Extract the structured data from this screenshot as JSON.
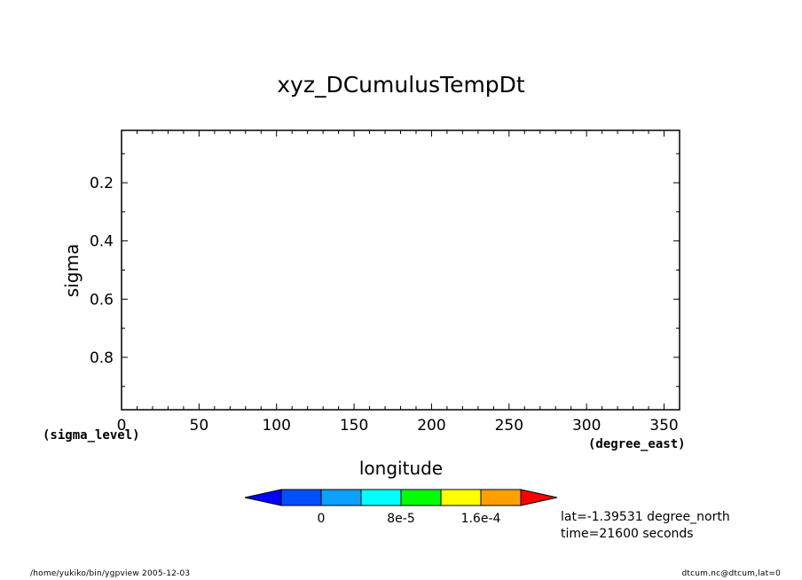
{
  "chart_data": {
    "type": "heatmap",
    "title": "xyz_DCumulusTempDt",
    "xlabel": "longitude",
    "ylabel": "sigma",
    "x_units": "(degree_east)",
    "y_units": "(sigma_level)",
    "xlim": [
      0,
      360
    ],
    "ylim": [
      0.02,
      0.98
    ],
    "y_inverted": true,
    "x_ticks": [
      0,
      50,
      100,
      150,
      200,
      250,
      300,
      350
    ],
    "y_ticks": [
      0.2,
      0.4,
      0.6,
      0.8
    ],
    "values": [],
    "colorbar": {
      "colors": [
        "#0000ff",
        "#0050ff",
        "#0ca0ff",
        "#00ffff",
        "#00ff00",
        "#ffff00",
        "#ffa000",
        "#ff0000"
      ],
      "tick_labels": [
        "0",
        "8e-5",
        "1.6e-4"
      ]
    },
    "annotations": [
      "lat=-1.39531 degree_north",
      "time=21600 seconds"
    ]
  },
  "footer": {
    "left": "/home/yukiko/bin/ygpview  2005-12-03",
    "right": "dtcum.nc@dtcum,lat=0"
  }
}
